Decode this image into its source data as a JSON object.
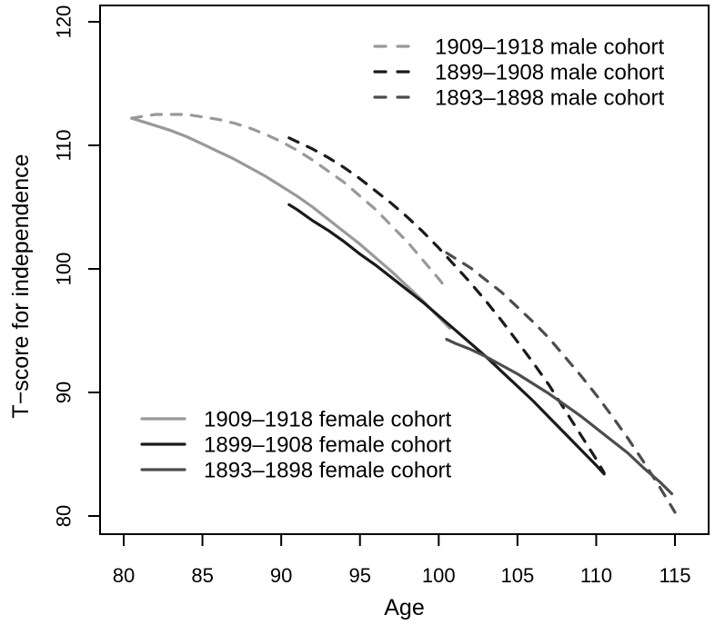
{
  "figure": {
    "background": "#ffffff",
    "axis_color": "#000000"
  },
  "chart_data": {
    "type": "line",
    "title": "",
    "xlabel": "Age",
    "ylabel": "T−score for independence",
    "xlim": [
      78.5,
      117
    ],
    "ylim": [
      78.5,
      121.5
    ],
    "x_ticks": [
      80,
      85,
      90,
      95,
      100,
      105,
      110,
      115
    ],
    "y_ticks": [
      80,
      90,
      100,
      110,
      120
    ],
    "grid": false,
    "colors": {
      "cohort_1909_1918": "#999999",
      "cohort_1899_1908": "#1a1a1a",
      "cohort_1893_1898": "#4d4d4d"
    },
    "series": [
      {
        "id": "male-1909-1918",
        "label": "1909–1918 male cohort",
        "group": "male",
        "color": "#999999",
        "linetype": "dashed",
        "points": [
          [
            80.5,
            112.2
          ],
          [
            81,
            112.3
          ],
          [
            82,
            112.5
          ],
          [
            83,
            112.5
          ],
          [
            84,
            112.5
          ],
          [
            85,
            112.3
          ],
          [
            86,
            112.1
          ],
          [
            87,
            111.8
          ],
          [
            88,
            111.4
          ],
          [
            89,
            110.9
          ],
          [
            90,
            110.3
          ],
          [
            91,
            109.6
          ],
          [
            92,
            108.8
          ],
          [
            93,
            107.9
          ],
          [
            94,
            107.0
          ],
          [
            95,
            105.9
          ],
          [
            96,
            104.8
          ],
          [
            97,
            103.5
          ],
          [
            98,
            102.2
          ],
          [
            99,
            100.7
          ],
          [
            100,
            99.2
          ],
          [
            100.5,
            98.4
          ]
        ]
      },
      {
        "id": "female-1909-1918",
        "label": "1909–1918 female cohort",
        "group": "female",
        "color": "#999999",
        "linetype": "solid",
        "points": [
          [
            80.5,
            112.2
          ],
          [
            81,
            112.0
          ],
          [
            82,
            111.6
          ],
          [
            83,
            111.2
          ],
          [
            84,
            110.7
          ],
          [
            85,
            110.1
          ],
          [
            86,
            109.5
          ],
          [
            87,
            108.9
          ],
          [
            88,
            108.2
          ],
          [
            89,
            107.5
          ],
          [
            90,
            106.7
          ],
          [
            91,
            105.9
          ],
          [
            92,
            105.0
          ],
          [
            93,
            104.0
          ],
          [
            94,
            103.0
          ],
          [
            95,
            102.0
          ],
          [
            96,
            100.9
          ],
          [
            97,
            99.8
          ],
          [
            98,
            98.6
          ],
          [
            99,
            97.4
          ],
          [
            100,
            96.1
          ],
          [
            100.7,
            95.2
          ]
        ]
      },
      {
        "id": "male-1899-1908",
        "label": "1899–1908 male cohort",
        "group": "male",
        "color": "#1a1a1a",
        "linetype": "dashed",
        "points": [
          [
            90.5,
            110.6
          ],
          [
            91,
            110.3
          ],
          [
            92,
            109.7
          ],
          [
            93,
            109.0
          ],
          [
            94,
            108.2
          ],
          [
            95,
            107.3
          ],
          [
            96,
            106.3
          ],
          [
            97,
            105.3
          ],
          [
            98,
            104.2
          ],
          [
            99,
            103.0
          ],
          [
            100,
            101.7
          ],
          [
            101,
            100.3
          ],
          [
            102,
            98.9
          ],
          [
            103,
            97.4
          ],
          [
            104,
            95.8
          ],
          [
            105,
            94.1
          ],
          [
            106,
            92.4
          ],
          [
            107,
            90.6
          ],
          [
            108,
            88.6
          ],
          [
            109,
            86.6
          ],
          [
            110,
            84.6
          ],
          [
            110.5,
            83.5
          ]
        ]
      },
      {
        "id": "female-1899-1908",
        "label": "1899–1908 female cohort",
        "group": "female",
        "color": "#1a1a1a",
        "linetype": "solid",
        "points": [
          [
            90.5,
            105.2
          ],
          [
            91,
            104.8
          ],
          [
            92,
            103.9
          ],
          [
            93,
            103.1
          ],
          [
            94,
            102.2
          ],
          [
            95,
            101.2
          ],
          [
            96,
            100.3
          ],
          [
            97,
            99.3
          ],
          [
            98,
            98.3
          ],
          [
            99,
            97.3
          ],
          [
            100,
            96.2
          ],
          [
            101,
            95.1
          ],
          [
            102,
            94.0
          ],
          [
            103,
            92.9
          ],
          [
            104,
            91.7
          ],
          [
            105,
            90.5
          ],
          [
            106,
            89.3
          ],
          [
            107,
            88.0
          ],
          [
            108,
            86.7
          ],
          [
            109,
            85.4
          ],
          [
            110,
            84.1
          ],
          [
            110.5,
            83.4
          ]
        ]
      },
      {
        "id": "male-1893-1898",
        "label": "1893–1898 male cohort",
        "group": "male",
        "color": "#4d4d4d",
        "linetype": "dashed",
        "points": [
          [
            100.5,
            101.3
          ],
          [
            101,
            100.9
          ],
          [
            102,
            100.1
          ],
          [
            103,
            99.1
          ],
          [
            104,
            98.1
          ],
          [
            105,
            96.9
          ],
          [
            106,
            95.7
          ],
          [
            107,
            94.4
          ],
          [
            108,
            92.9
          ],
          [
            109,
            91.4
          ],
          [
            110,
            89.8
          ],
          [
            111,
            88.1
          ],
          [
            112,
            86.3
          ],
          [
            113,
            84.4
          ],
          [
            114,
            82.4
          ],
          [
            115,
            80.3
          ]
        ]
      },
      {
        "id": "female-1893-1898",
        "label": "1893–1898 female cohort",
        "group": "female",
        "color": "#4d4d4d",
        "linetype": "solid",
        "points": [
          [
            100.5,
            94.3
          ],
          [
            101,
            94.0
          ],
          [
            102,
            93.5
          ],
          [
            103,
            92.9
          ],
          [
            104,
            92.2
          ],
          [
            105,
            91.5
          ],
          [
            106,
            90.7
          ],
          [
            107,
            89.9
          ],
          [
            108,
            89.0
          ],
          [
            109,
            88.1
          ],
          [
            110,
            87.1
          ],
          [
            111,
            86.1
          ],
          [
            112,
            85.1
          ],
          [
            113,
            83.9
          ],
          [
            114,
            82.8
          ],
          [
            114.8,
            81.8
          ]
        ]
      }
    ],
    "legends": [
      {
        "name": "male-legend",
        "position": "top-right",
        "entries": [
          "male-1909-1918",
          "male-1899-1908",
          "male-1893-1898"
        ]
      },
      {
        "name": "female-legend",
        "position": "bottom-left",
        "entries": [
          "female-1909-1918",
          "female-1899-1908",
          "female-1893-1898"
        ]
      }
    ]
  }
}
